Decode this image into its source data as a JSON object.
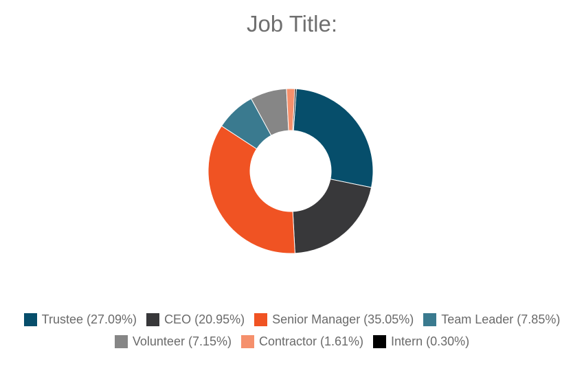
{
  "chart_data": {
    "type": "pie",
    "style": "donut",
    "title": "Job Title:",
    "legend_position": "bottom",
    "start_angle_deg": -90,
    "series": [
      {
        "name": "Trustee",
        "value": 27.09,
        "label": "Trustee (27.09%)",
        "color": "#064e6b"
      },
      {
        "name": "CEO",
        "value": 20.95,
        "label": "CEO (20.95%)",
        "color": "#38383a"
      },
      {
        "name": "Senior Manager",
        "value": 35.05,
        "label": "Senior Manager (35.05%)",
        "color": "#f05323"
      },
      {
        "name": "Team Leader",
        "value": 7.85,
        "label": "Team Leader (7.85%)",
        "color": "#3a7a8f"
      },
      {
        "name": "Volunteer",
        "value": 7.15,
        "label": "Volunteer (7.15%)",
        "color": "#868686"
      },
      {
        "name": "Contractor",
        "value": 1.61,
        "label": "Contractor (1.61%)",
        "color": "#f5906c"
      },
      {
        "name": "Intern",
        "value": 0.3,
        "label": "Intern (0.30%)",
        "color": "#000000"
      }
    ]
  }
}
